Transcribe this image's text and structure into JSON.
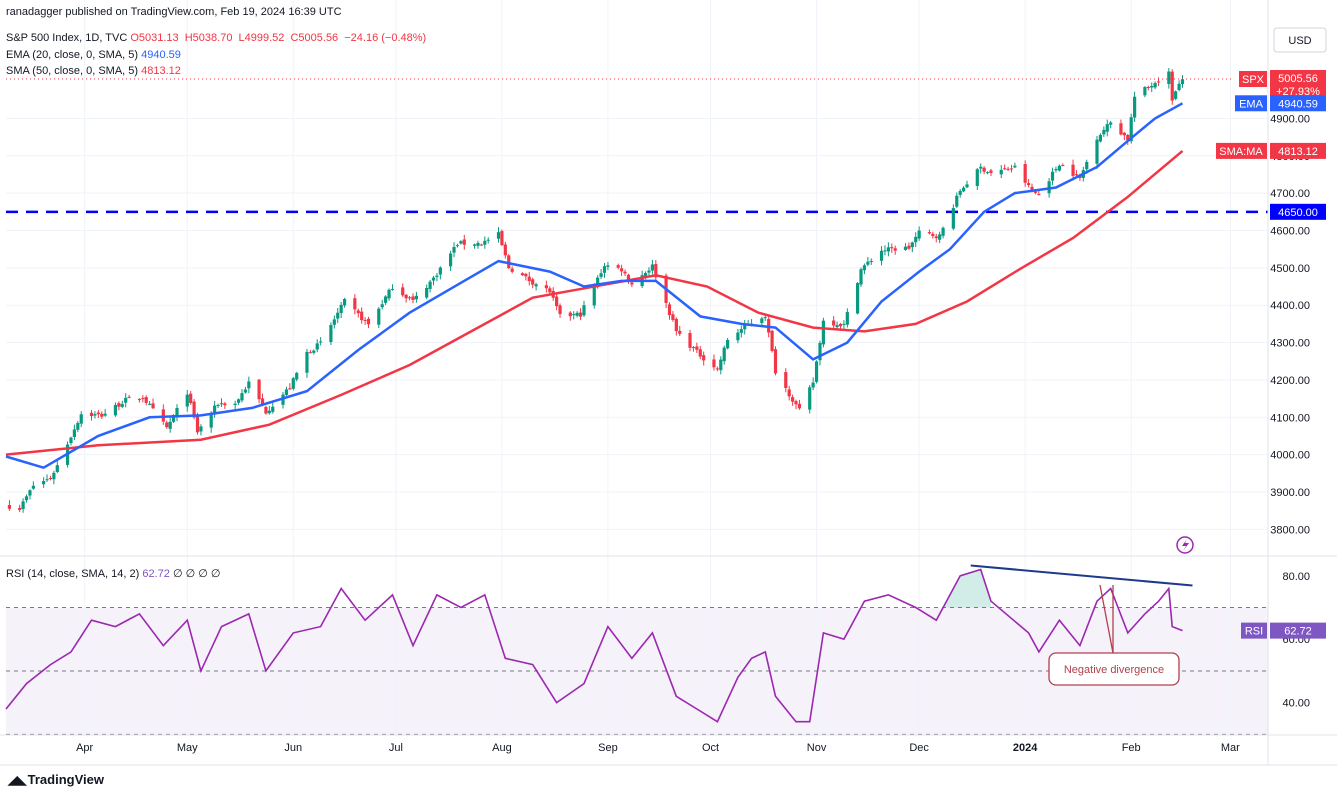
{
  "header": {
    "published": "ranadagger published on TradingView.com, Feb 19, 2024 16:39 UTC",
    "symbol_line": "S&P 500 Index, 1D, TVC",
    "ohlc": {
      "O": "O5031.13",
      "H": "H5038.70",
      "L": "L4999.52",
      "C": "C5005.56",
      "chg": "−24.16 (−0.48%)"
    },
    "ema_label": "EMA (20, close, 0, SMA, 5)",
    "ema_value": "4940.59",
    "sma_label": "SMA (50, close, 0, SMA, 5)",
    "sma_value": "4813.12",
    "rsi_label": "RSI (14, close, SMA, 14, 2)",
    "rsi_value": "62.72",
    "rsi_extras": "∅ ∅ ∅ ∅"
  },
  "currency": "USD",
  "footer": "TradingView",
  "colors": {
    "up": "#089981",
    "down": "#f23645",
    "ema": "#2962ff",
    "sma": "#f23645",
    "rsi": "#7e57c2",
    "level": "#0000ff",
    "divergence": "#1e3a8a"
  },
  "chart_data": {
    "type": "candlestick",
    "price_axis": {
      "min": 3750,
      "max": 5110,
      "ticks": [
        3800,
        3900,
        4000,
        4100,
        4200,
        4300,
        4400,
        4500,
        4600,
        4700,
        4800,
        4900
      ]
    },
    "tick_labels": [
      "3800.00",
      "3900.00",
      "4000.00",
      "4100.00",
      "4200.00",
      "4300.00",
      "4400.00",
      "4500.00",
      "4600.00",
      "4700.00",
      "4800.00",
      "4900.00"
    ],
    "x_labels": [
      "Apr",
      "May",
      "Jun",
      "Jul",
      "Aug",
      "Sep",
      "Oct",
      "Nov",
      "Dec",
      "2024",
      "Feb",
      "Mar"
    ],
    "x_label_dates": [
      "2023-04-01",
      "2023-05-01",
      "2023-06-01",
      "2023-07-01",
      "2023-08-01",
      "2023-09-01",
      "2023-10-01",
      "2023-11-01",
      "2023-12-01",
      "2024-01-01",
      "2024-02-01",
      "2024-03-01"
    ],
    "date_range": [
      "2023-03-09",
      "2024-03-12"
    ],
    "close_series": [
      [
        "2023-03-10",
        3862
      ],
      [
        "2023-03-13",
        3856
      ],
      [
        "2023-03-17",
        3917
      ],
      [
        "2023-03-22",
        3937
      ],
      [
        "2023-03-24",
        3971
      ],
      [
        "2023-03-31",
        4109
      ],
      [
        "2023-04-06",
        4105
      ],
      [
        "2023-04-13",
        4146
      ],
      [
        "2023-04-18",
        4154
      ],
      [
        "2023-04-25",
        4071
      ],
      [
        "2023-05-01",
        4167
      ],
      [
        "2023-05-04",
        4061
      ],
      [
        "2023-05-10",
        4137
      ],
      [
        "2023-05-15",
        4136
      ],
      [
        "2023-05-19",
        4192
      ],
      [
        "2023-05-24",
        4115
      ],
      [
        "2023-05-31",
        4180
      ],
      [
        "2023-06-05",
        4273
      ],
      [
        "2023-06-09",
        4298
      ],
      [
        "2023-06-16",
        4410
      ],
      [
        "2023-06-23",
        4348
      ],
      [
        "2023-06-30",
        4450
      ],
      [
        "2023-07-06",
        4411
      ],
      [
        "2023-07-12",
        4472
      ],
      [
        "2023-07-19",
        4565
      ],
      [
        "2023-07-26",
        4566
      ],
      [
        "2023-07-31",
        4589
      ],
      [
        "2023-08-03",
        4501
      ],
      [
        "2023-08-09",
        4467
      ],
      [
        "2023-08-15",
        4437
      ],
      [
        "2023-08-18",
        4370
      ],
      [
        "2023-08-24",
        4376
      ],
      [
        "2023-08-31",
        4508
      ],
      [
        "2023-09-05",
        4496
      ],
      [
        "2023-09-08",
        4457
      ],
      [
        "2023-09-14",
        4505
      ],
      [
        "2023-09-21",
        4330
      ],
      [
        "2023-09-27",
        4274
      ],
      [
        "2023-10-03",
        4229
      ],
      [
        "2023-10-06",
        4308
      ],
      [
        "2023-10-12",
        4349
      ],
      [
        "2023-10-17",
        4373
      ],
      [
        "2023-10-20",
        4224
      ],
      [
        "2023-10-27",
        4117
      ],
      [
        "2023-10-31",
        4194
      ],
      [
        "2023-11-03",
        4358
      ],
      [
        "2023-11-09",
        4347
      ],
      [
        "2023-11-14",
        4496
      ],
      [
        "2023-11-20",
        4547
      ],
      [
        "2023-11-28",
        4554
      ],
      [
        "2023-12-01",
        4594
      ],
      [
        "2023-12-07",
        4585
      ],
      [
        "2023-12-13",
        4707
      ],
      [
        "2023-12-19",
        4768
      ],
      [
        "2023-12-22",
        4754
      ],
      [
        "2023-12-29",
        4769
      ],
      [
        "2024-01-03",
        4704
      ],
      [
        "2024-01-05",
        4697
      ],
      [
        "2024-01-11",
        4780
      ],
      [
        "2024-01-17",
        4739
      ],
      [
        "2024-01-22",
        4850
      ],
      [
        "2024-01-26",
        4890
      ],
      [
        "2024-01-31",
        4845
      ],
      [
        "2024-02-02",
        4958
      ],
      [
        "2024-02-08",
        4997
      ],
      [
        "2024-02-12",
        5021
      ],
      [
        "2024-02-13",
        4953
      ],
      [
        "2024-02-16",
        5005
      ]
    ],
    "ema_series": [
      [
        "2023-03-09",
        3995
      ],
      [
        "2023-03-20",
        3965
      ],
      [
        "2023-04-05",
        4050
      ],
      [
        "2023-04-20",
        4100
      ],
      [
        "2023-05-05",
        4105
      ],
      [
        "2023-05-20",
        4125
      ],
      [
        "2023-06-05",
        4170
      ],
      [
        "2023-06-20",
        4280
      ],
      [
        "2023-07-05",
        4380
      ],
      [
        "2023-07-20",
        4460
      ],
      [
        "2023-07-31",
        4518
      ],
      [
        "2023-08-15",
        4490
      ],
      [
        "2023-08-25",
        4450
      ],
      [
        "2023-09-05",
        4465
      ],
      [
        "2023-09-15",
        4465
      ],
      [
        "2023-09-28",
        4370
      ],
      [
        "2023-10-10",
        4350
      ],
      [
        "2023-10-20",
        4340
      ],
      [
        "2023-10-31",
        4255
      ],
      [
        "2023-11-10",
        4300
      ],
      [
        "2023-11-20",
        4410
      ],
      [
        "2023-12-01",
        4490
      ],
      [
        "2023-12-10",
        4550
      ],
      [
        "2023-12-20",
        4650
      ],
      [
        "2023-12-29",
        4700
      ],
      [
        "2024-01-10",
        4715
      ],
      [
        "2024-01-22",
        4770
      ],
      [
        "2024-01-31",
        4840
      ],
      [
        "2024-02-08",
        4900
      ],
      [
        "2024-02-16",
        4940.59
      ]
    ],
    "sma_series": [
      [
        "2023-03-09",
        4000
      ],
      [
        "2023-04-05",
        4025
      ],
      [
        "2023-05-05",
        4040
      ],
      [
        "2023-05-25",
        4080
      ],
      [
        "2023-06-15",
        4160
      ],
      [
        "2023-07-05",
        4240
      ],
      [
        "2023-07-25",
        4340
      ],
      [
        "2023-08-10",
        4420
      ],
      [
        "2023-08-31",
        4455
      ],
      [
        "2023-09-15",
        4480
      ],
      [
        "2023-09-30",
        4450
      ],
      [
        "2023-10-15",
        4380
      ],
      [
        "2023-10-31",
        4340
      ],
      [
        "2023-11-15",
        4330
      ],
      [
        "2023-11-30",
        4350
      ],
      [
        "2023-12-15",
        4410
      ],
      [
        "2023-12-31",
        4500
      ],
      [
        "2024-01-15",
        4580
      ],
      [
        "2024-01-31",
        4690
      ],
      [
        "2024-02-16",
        4813.12
      ]
    ],
    "horizontal_level": {
      "value": 4650,
      "label": "4650.00"
    },
    "price_tags": [
      {
        "name": "SPX",
        "value": "5005.56",
        "change": "+27.93%",
        "price": 5005.56
      },
      {
        "name": "EMA",
        "value": "4940.59",
        "price": 4940.59
      },
      {
        "name": "SMA:MA",
        "value": "4813.12",
        "price": 4813.12
      }
    ],
    "rsi": {
      "axis": {
        "min": 32,
        "max": 85,
        "ticks": [
          40,
          60,
          80
        ],
        "tick_labels": [
          "40.00",
          "60.00",
          "80.00"
        ],
        "upper": 70,
        "lower": 30
      },
      "value": 62.72,
      "series": [
        [
          "2023-03-09",
          38
        ],
        [
          "2023-03-15",
          46
        ],
        [
          "2023-03-22",
          52
        ],
        [
          "2023-03-28",
          56
        ],
        [
          "2023-04-03",
          66
        ],
        [
          "2023-04-10",
          64
        ],
        [
          "2023-04-17",
          68
        ],
        [
          "2023-04-24",
          58
        ],
        [
          "2023-05-01",
          66
        ],
        [
          "2023-05-05",
          50
        ],
        [
          "2023-05-11",
          64
        ],
        [
          "2023-05-19",
          68
        ],
        [
          "2023-05-24",
          50
        ],
        [
          "2023-06-01",
          62
        ],
        [
          "2023-06-09",
          64
        ],
        [
          "2023-06-15",
          76
        ],
        [
          "2023-06-22",
          66
        ],
        [
          "2023-06-30",
          74
        ],
        [
          "2023-07-06",
          58
        ],
        [
          "2023-07-13",
          74
        ],
        [
          "2023-07-20",
          70
        ],
        [
          "2023-07-27",
          74
        ],
        [
          "2023-08-02",
          54
        ],
        [
          "2023-08-10",
          52
        ],
        [
          "2023-08-17",
          40
        ],
        [
          "2023-08-25",
          46
        ],
        [
          "2023-09-01",
          64
        ],
        [
          "2023-09-08",
          54
        ],
        [
          "2023-09-14",
          62
        ],
        [
          "2023-09-21",
          42
        ],
        [
          "2023-09-27",
          38
        ],
        [
          "2023-10-03",
          34
        ],
        [
          "2023-10-09",
          48
        ],
        [
          "2023-10-13",
          54
        ],
        [
          "2023-10-17",
          56
        ],
        [
          "2023-10-20",
          42
        ],
        [
          "2023-10-26",
          34
        ],
        [
          "2023-10-30",
          34
        ],
        [
          "2023-11-03",
          62
        ],
        [
          "2023-11-09",
          60
        ],
        [
          "2023-11-15",
          72
        ],
        [
          "2023-11-22",
          74
        ],
        [
          "2023-11-30",
          70
        ],
        [
          "2023-12-06",
          66
        ],
        [
          "2023-12-13",
          80
        ],
        [
          "2023-12-19",
          82
        ],
        [
          "2023-12-22",
          72
        ],
        [
          "2024-01-02",
          62
        ],
        [
          "2024-01-05",
          56
        ],
        [
          "2024-01-11",
          66
        ],
        [
          "2024-01-17",
          58
        ],
        [
          "2024-01-22",
          72
        ],
        [
          "2024-01-26",
          76
        ],
        [
          "2024-01-31",
          62
        ],
        [
          "2024-02-05",
          68
        ],
        [
          "2024-02-09",
          72
        ],
        [
          "2024-02-12",
          76
        ],
        [
          "2024-02-13",
          64
        ],
        [
          "2024-02-16",
          62.72
        ]
      ],
      "divergence_line": [
        [
          "2023-12-19",
          82
        ],
        [
          "2024-02-16",
          76
        ]
      ],
      "annotation": "Negative divergence"
    }
  }
}
